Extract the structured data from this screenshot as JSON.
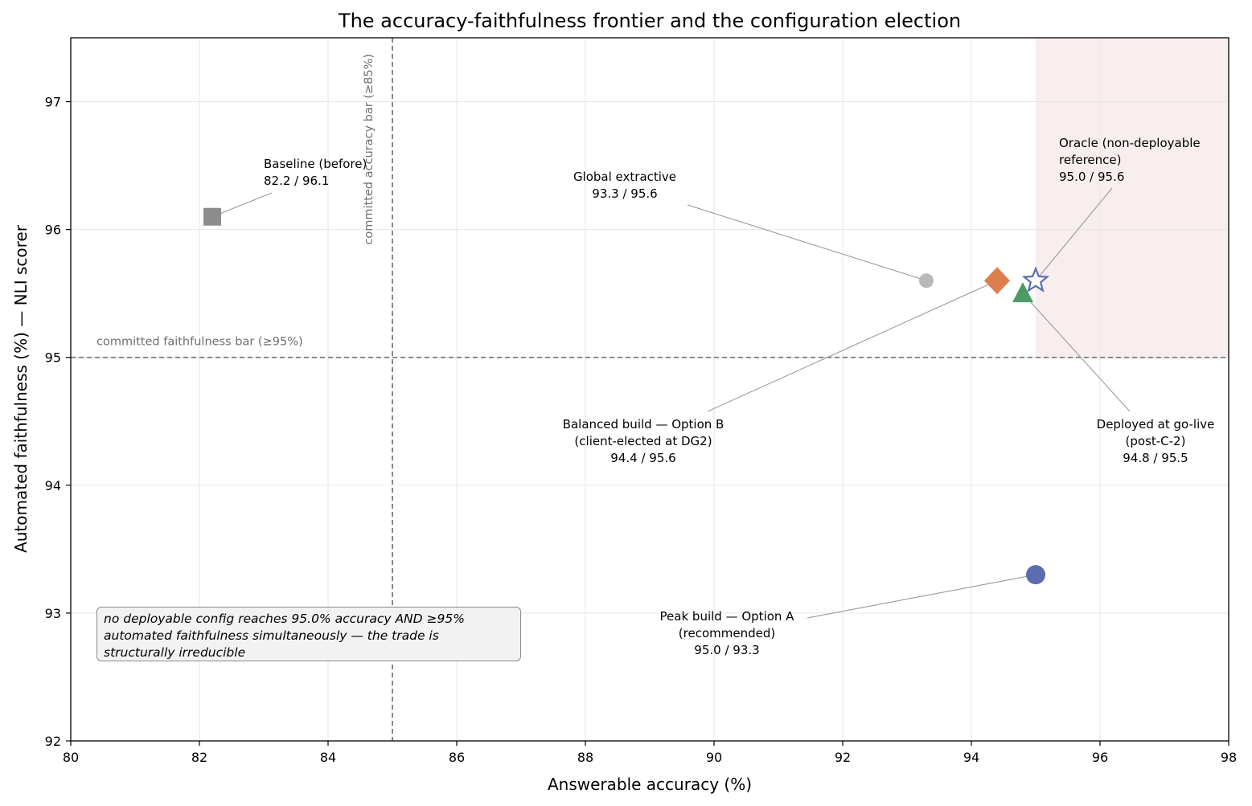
{
  "chart_data": {
    "type": "scatter",
    "title": "The accuracy-faithfulness frontier and the configuration election",
    "xlabel": "Answerable accuracy (%)",
    "ylabel": "Automated faithfulness (%) — NLI scorer",
    "xlim": [
      80,
      98
    ],
    "ylim": [
      92,
      97.5
    ],
    "x_ticks": [
      80,
      82,
      84,
      86,
      88,
      90,
      92,
      94,
      96,
      98
    ],
    "y_ticks": [
      92,
      93,
      94,
      95,
      96,
      97
    ],
    "grid": true,
    "shaded_region": {
      "x": [
        95,
        98
      ],
      "y": [
        95,
        97.5
      ],
      "color": "#f8eeee"
    },
    "reference_lines": [
      {
        "axis": "x",
        "value": 85,
        "label": "committed accuracy bar (≥85%)"
      },
      {
        "axis": "y",
        "value": 95,
        "label": "committed faithfulness bar (≥95%)"
      }
    ],
    "points": [
      {
        "id": "baseline",
        "x": 82.2,
        "y": 96.1,
        "marker": "square",
        "color": "#8c8c8c",
        "label_lines": [
          "Baseline (before)",
          "82.2 / 96.1"
        ]
      },
      {
        "id": "global-extractive",
        "x": 93.3,
        "y": 95.6,
        "marker": "circle-small",
        "color": "#b8b8b8",
        "label_lines": [
          "Global extractive",
          "93.3 / 95.6"
        ]
      },
      {
        "id": "balanced",
        "x": 94.4,
        "y": 95.6,
        "marker": "diamond",
        "color": "#dc7f4e",
        "label_lines": [
          "Balanced build — Option B",
          "(client-elected at DG2)",
          "94.4 / 95.6"
        ]
      },
      {
        "id": "deployed",
        "x": 94.8,
        "y": 95.5,
        "marker": "triangle",
        "color": "#4e9a65",
        "label_lines": [
          "Deployed at go-live",
          "(post-C-2)",
          "94.8 / 95.5"
        ]
      },
      {
        "id": "oracle",
        "x": 95.0,
        "y": 95.6,
        "marker": "star-open",
        "color": "#5b6db0",
        "label_lines": [
          "Oracle (non-deployable",
          "reference)",
          "95.0 / 95.6"
        ]
      },
      {
        "id": "peak",
        "x": 95.0,
        "y": 93.3,
        "marker": "circle",
        "color": "#5b6db0",
        "label_lines": [
          "Peak build — Option A",
          "(recommended)",
          "95.0 / 93.3"
        ]
      }
    ],
    "note": {
      "lines": [
        "no deployable config reaches 95.0% accuracy AND ≥95%",
        "automated faithfulness simultaneously — the trade is",
        "structurally irreducible"
      ]
    }
  }
}
